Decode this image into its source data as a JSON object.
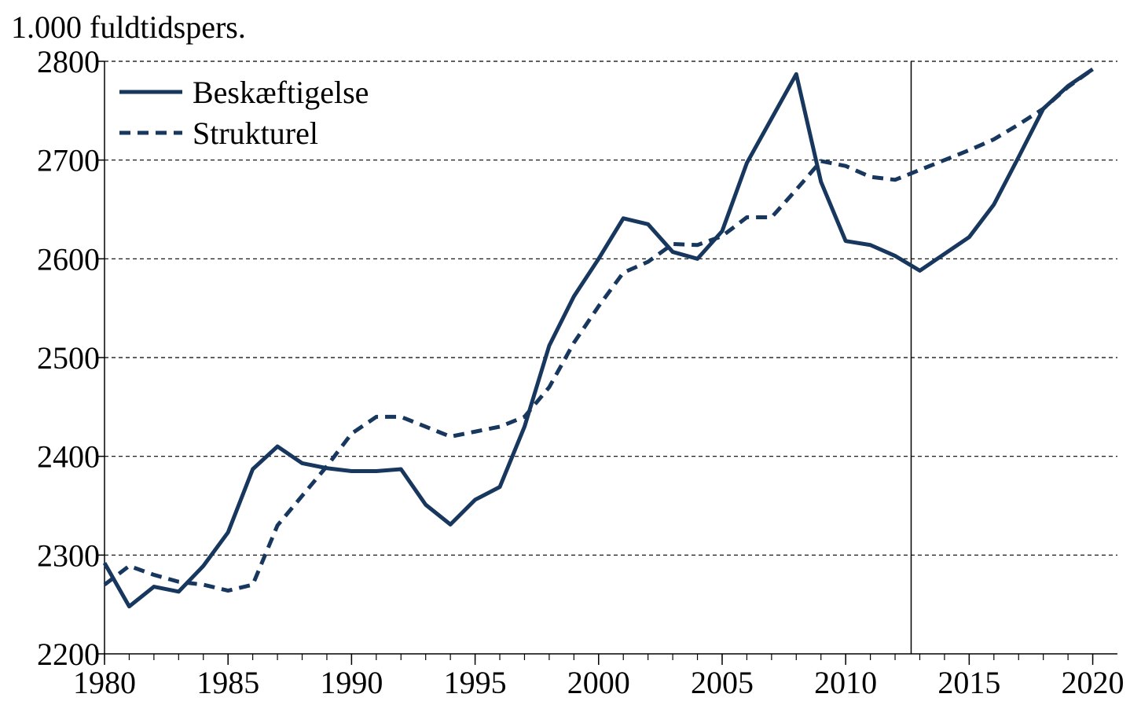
{
  "chart_data": {
    "type": "line",
    "y_label": "1.000 fuldtidspers.",
    "x": [
      1980,
      1981,
      1982,
      1983,
      1984,
      1985,
      1986,
      1987,
      1988,
      1989,
      1990,
      1991,
      1992,
      1993,
      1994,
      1995,
      1996,
      1997,
      1998,
      1999,
      2000,
      2001,
      2002,
      2003,
      2004,
      2005,
      2006,
      2007,
      2008,
      2009,
      2010,
      2011,
      2012,
      2013,
      2014,
      2015,
      2016,
      2017,
      2018,
      2019,
      2020
    ],
    "series": [
      {
        "name": "Beskæftigelse",
        "color": "#17375e",
        "dash": "solid",
        "values": [
          2292,
          2248,
          2268,
          2263,
          2289,
          2323,
          2387,
          2410,
          2393,
          2388,
          2385,
          2385,
          2387,
          2351,
          2331,
          2356,
          2369,
          2430,
          2512,
          2562,
          2600,
          2641,
          2635,
          2607,
          2600,
          2628,
          2697,
          2742,
          2787,
          2678,
          2618,
          2614,
          2603,
          2588,
          2605,
          2622,
          2655,
          2703,
          2752,
          2775,
          2792
        ]
      },
      {
        "name": "Strukturel",
        "color": "#17375e",
        "dash": "dashed",
        "values": [
          2270,
          2289,
          2280,
          2273,
          2270,
          2264,
          2270,
          2330,
          2360,
          2390,
          2423,
          2440,
          2440,
          2430,
          2420,
          2425,
          2430,
          2440,
          2470,
          2515,
          2552,
          2586,
          2597,
          2615,
          2614,
          2623,
          2642,
          2642,
          2670,
          2699,
          2694,
          2683,
          2680,
          2690,
          2700,
          2710,
          2721,
          2736,
          2752,
          2774,
          2792
        ]
      }
    ],
    "xlim": [
      1980,
      2021
    ],
    "xticks": [
      1980,
      1985,
      1990,
      1995,
      2000,
      2005,
      2010,
      2015,
      2020
    ],
    "ylim": [
      2200,
      2800
    ],
    "yticks": [
      2200,
      2300,
      2400,
      2500,
      2600,
      2700,
      2800
    ],
    "grid": true,
    "legend": "upper left",
    "vline": 2012.65
  }
}
